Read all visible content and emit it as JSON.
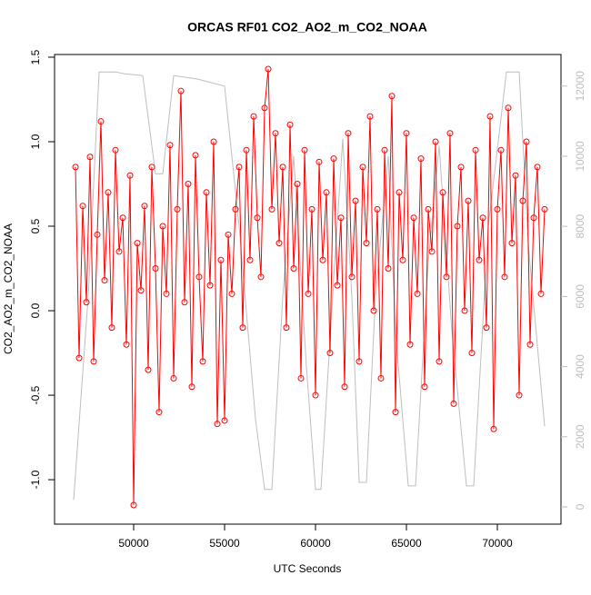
{
  "chart_data": {
    "type": "line",
    "title": "ORCAS RF01 CO2_AO2_m_CO2_NOAA",
    "x_label": "UTC Seconds",
    "y_label": "CO2_AO2_m_CO2_NOAA",
    "xlim": [
      45650,
      73500
    ],
    "ylim": [
      -1.263,
      1.516
    ],
    "y2lim": [
      -492,
      12900
    ],
    "xticks": [
      50000,
      55000,
      60000,
      65000,
      70000
    ],
    "yticks": [
      {
        "value": -1,
        "label": "-1.0"
      },
      -0.5,
      {
        "value": 0,
        "label": "0.0"
      },
      0.5,
      {
        "value": 1,
        "label": "1.0"
      },
      1.5
    ],
    "y2ticks": [
      0,
      2000,
      4000,
      6000,
      8000,
      10000,
      12000
    ],
    "series": [
      {
        "color": "#ff0000",
        "markers": true,
        "x": [
          46800,
          47000,
          47200,
          47400,
          47600,
          47800,
          48000,
          48200,
          48400,
          48600,
          48800,
          49000,
          49200,
          49400,
          49600,
          49800,
          50000,
          50200,
          50400,
          50600,
          50800,
          51000,
          51200,
          51400,
          51600,
          51800,
          52000,
          52200,
          52400,
          52600,
          52800,
          53000,
          53200,
          53400,
          53600,
          53800,
          54000,
          54200,
          54400,
          54600,
          54800,
          55000,
          55200,
          55400,
          55600,
          55800,
          56000,
          56200,
          56400,
          56600,
          56800,
          57000,
          57200,
          57400,
          57600,
          57800,
          58000,
          58200,
          58400,
          58600,
          58800,
          59000,
          59200,
          59400,
          59600,
          59800,
          60000,
          60200,
          60400,
          60600,
          60800,
          61000,
          61200,
          61400,
          61600,
          61800,
          62000,
          62200,
          62400,
          62600,
          62800,
          63000,
          63200,
          63400,
          63600,
          63800,
          64000,
          64200,
          64400,
          64600,
          64800,
          65000,
          65200,
          65400,
          65600,
          65800,
          66000,
          66200,
          66400,
          66600,
          66800,
          67000,
          67200,
          67400,
          67600,
          67800,
          68000,
          68200,
          68400,
          68600,
          68800,
          69000,
          69200,
          69400,
          69600,
          69800,
          70000,
          70200,
          70400,
          70600,
          70800,
          71000,
          71200,
          71400,
          71600,
          71800,
          72000,
          72200,
          72400,
          72600
        ],
        "values": [
          0.85,
          -0.28,
          0.62,
          0.05,
          0.91,
          -0.3,
          0.45,
          1.12,
          0.18,
          0.7,
          -0.1,
          0.95,
          0.35,
          0.55,
          -0.2,
          0.8,
          -1.15,
          0.4,
          0.12,
          0.62,
          -0.35,
          0.85,
          0.25,
          -0.6,
          0.5,
          0.1,
          0.98,
          -0.4,
          0.6,
          1.3,
          0.05,
          0.75,
          -0.45,
          0.92,
          0.2,
          -0.3,
          0.7,
          0.15,
          1.0,
          -0.67,
          0.3,
          -0.65,
          0.45,
          0.1,
          0.6,
          0.85,
          -0.1,
          0.95,
          0.3,
          1.15,
          0.55,
          0.2,
          1.2,
          1.43,
          0.6,
          1.05,
          0.4,
          0.85,
          -0.1,
          1.1,
          0.25,
          0.75,
          -0.4,
          0.95,
          0.1,
          0.6,
          -0.5,
          0.88,
          0.3,
          0.7,
          -0.25,
          0.9,
          0.15,
          0.55,
          -0.45,
          1.05,
          0.2,
          0.65,
          -0.3,
          0.85,
          0.4,
          1.15,
          0.0,
          0.6,
          -0.4,
          0.95,
          0.25,
          1.27,
          -0.6,
          0.7,
          0.3,
          1.05,
          -0.2,
          0.55,
          0.1,
          0.9,
          -0.45,
          0.6,
          0.35,
          1.0,
          -0.3,
          0.7,
          0.2,
          1.05,
          -0.55,
          0.5,
          0.85,
          0.0,
          0.65,
          -0.25,
          0.95,
          0.3,
          0.55,
          -0.1,
          1.15,
          -0.7,
          0.6,
          0.95,
          0.2,
          1.2,
          0.4,
          0.8,
          -0.5,
          0.65,
          1.0,
          -0.2,
          0.55,
          0.85,
          0.1,
          0.6
        ]
      },
      {
        "color": "#bebebe",
        "axis": "y2",
        "markers": false,
        "x": [
          46700,
          47500,
          48100,
          49000,
          49500,
          50500,
          51200,
          51600,
          52200,
          53500,
          55000,
          55800,
          56700,
          57200,
          57600,
          58200,
          58800,
          59500,
          60000,
          60300,
          61000,
          61500,
          62000,
          62400,
          62800,
          63300,
          64000,
          64400,
          65100,
          65500,
          66200,
          66800,
          67500,
          68300,
          68700,
          69500,
          70500,
          71200,
          71700,
          72600
        ],
        "values": [
          200,
          6000,
          12400,
          12400,
          12350,
          12300,
          9500,
          9500,
          12300,
          12200,
          12000,
          8000,
          2500,
          500,
          500,
          6000,
          10000,
          4000,
          500,
          500,
          6500,
          10500,
          6000,
          700,
          700,
          6000,
          10000,
          5000,
          600,
          600,
          7000,
          10300,
          5000,
          600,
          600,
          8000,
          12400,
          12400,
          7500,
          2300
        ]
      }
    ]
  }
}
